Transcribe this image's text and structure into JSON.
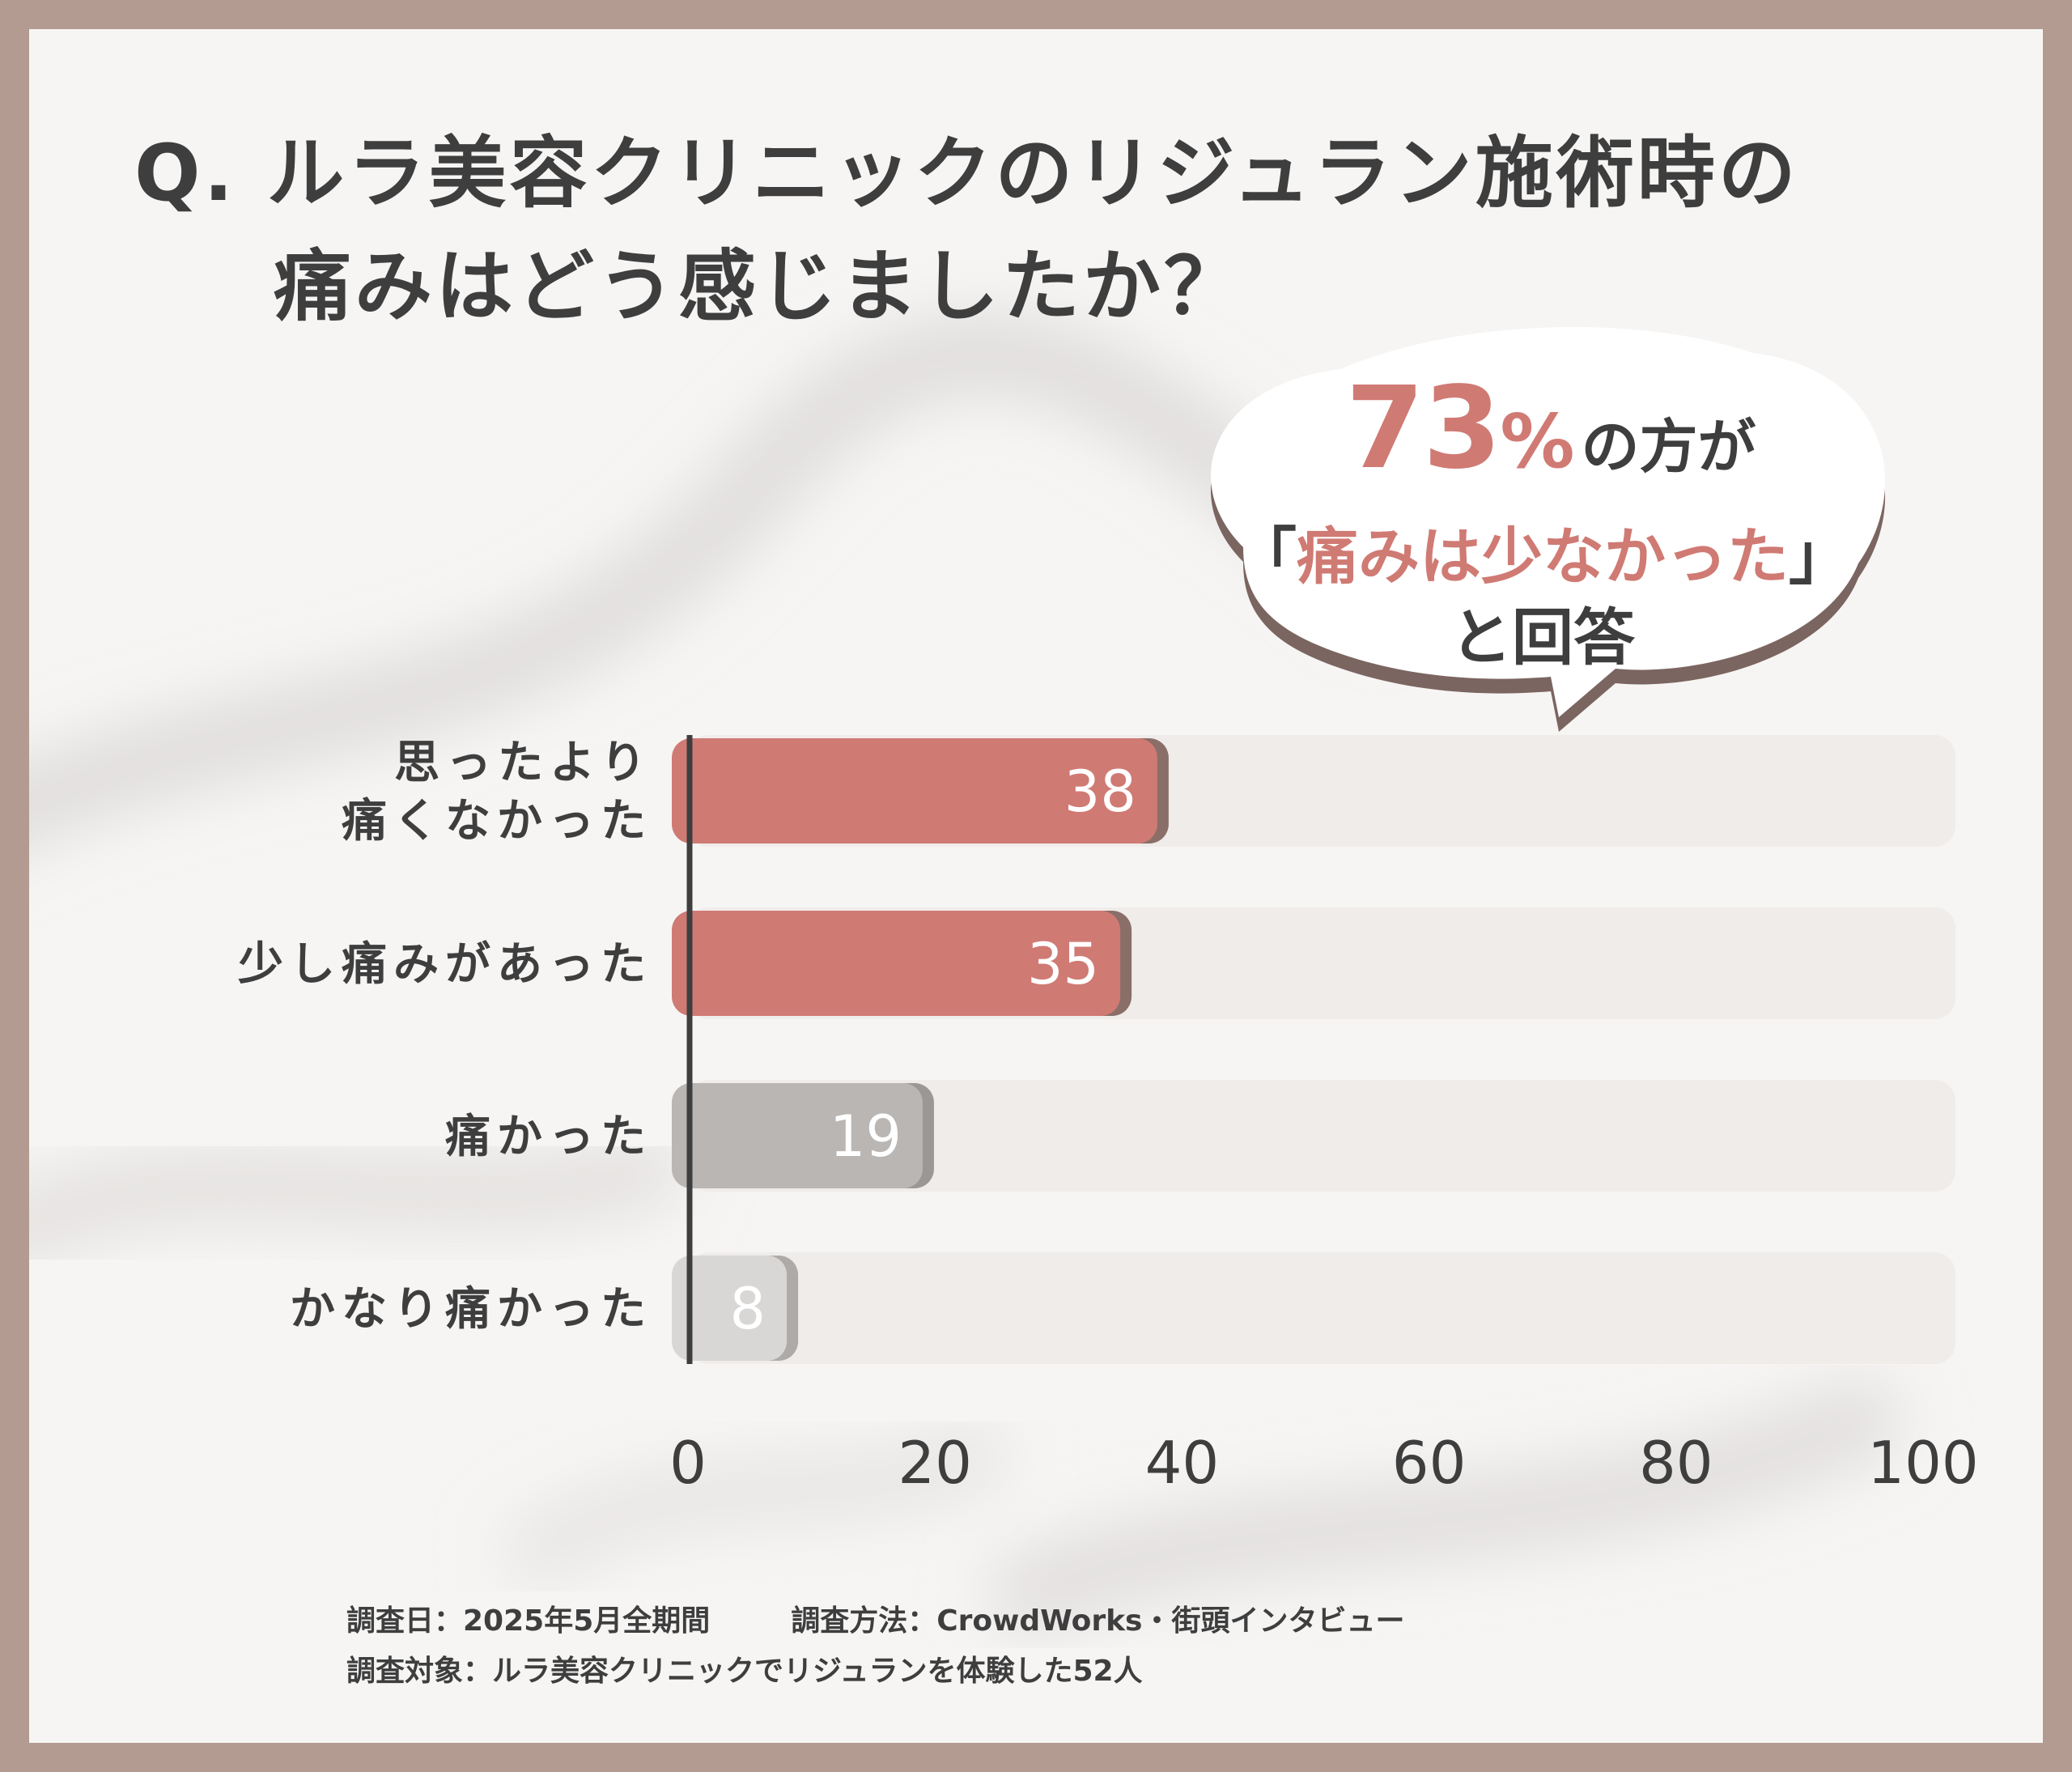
{
  "title": {
    "line1": "Q. ルラ美容クリニックのリジュラン施術時の",
    "line2": "痛みはどう感じましたか？"
  },
  "callout": {
    "percent_number": "73",
    "percent_unit": "%",
    "after": "の方が",
    "quote_open": "「",
    "quote_text": "痛みは少なかった",
    "quote_close": "」",
    "line3": "と回答"
  },
  "chart_data": {
    "type": "bar",
    "orientation": "horizontal",
    "categories": [
      [
        "思ったより",
        "痛くなかった"
      ],
      [
        "少し痛みがあった"
      ],
      [
        "痛かった"
      ],
      [
        "かなり痛かった"
      ]
    ],
    "values": [
      38,
      35,
      19,
      8
    ],
    "value_labels": [
      "38",
      "35",
      "19",
      "8"
    ],
    "xlim": [
      0,
      100
    ],
    "xticks": [
      0,
      20,
      40,
      60,
      80,
      100
    ],
    "xtick_labels": [
      "0",
      "20",
      "40",
      "60",
      "80",
      "100"
    ],
    "colors": {
      "bar_fill": [
        "#d07a74",
        "#d07a74",
        "#b9b6b4",
        "#d9d7d5"
      ],
      "bar_shadow": [
        "#8a6e68",
        "#8a6e68",
        "#9a9795",
        "#adaaa8"
      ],
      "track": "#efecea",
      "axis": "#3e3e3e"
    },
    "grid": false,
    "legend": "none"
  },
  "footnote": {
    "date": "調査日：2025年5月全期間",
    "method": "調査方法：CrowdWorks・街頭インタビュー",
    "target": "調査対象：ルラ美容クリニックでリジュランを体験した52人"
  }
}
